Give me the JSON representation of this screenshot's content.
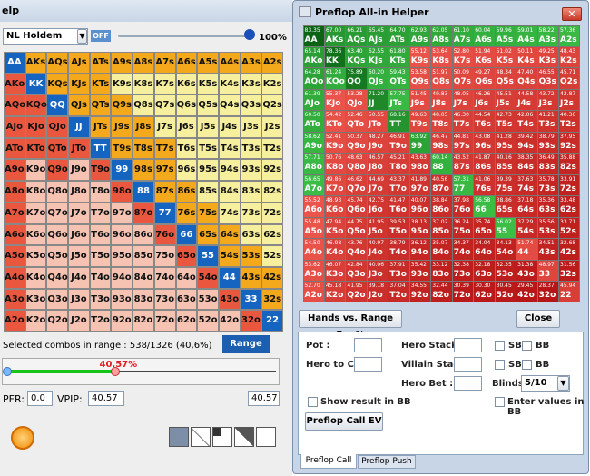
{
  "left_window": {
    "title": "elp",
    "game": "NL Holdem",
    "toggle": "OFF",
    "slider_value": "100%",
    "selected_label": "Selected combos in range : 538/1326 (40,6%)",
    "range_button": "Range",
    "range_percent": "40.57%",
    "pfr_label": "PFR:",
    "pfr": "0.0",
    "vpip_label": "VPIP:",
    "vpip": "40.57",
    "range_field": "40.57"
  },
  "hands": [
    [
      "AA",
      "AKs",
      "AQs",
      "AJs",
      "ATs",
      "A9s",
      "A8s",
      "A7s",
      "A6s",
      "A5s",
      "A4s",
      "A3s",
      "A2s"
    ],
    [
      "AKo",
      "KK",
      "KQs",
      "KJs",
      "KTs",
      "K9s",
      "K8s",
      "K7s",
      "K6s",
      "K5s",
      "K4s",
      "K3s",
      "K2s"
    ],
    [
      "AQo",
      "KQo",
      "QQ",
      "QJs",
      "QTs",
      "Q9s",
      "Q8s",
      "Q7s",
      "Q6s",
      "Q5s",
      "Q4s",
      "Q3s",
      "Q2s"
    ],
    [
      "AJo",
      "KJo",
      "QJo",
      "JJ",
      "JTs",
      "J9s",
      "J8s",
      "J7s",
      "J6s",
      "J5s",
      "J4s",
      "J3s",
      "J2s"
    ],
    [
      "ATo",
      "KTo",
      "QTo",
      "JTo",
      "TT",
      "T9s",
      "T8s",
      "T7s",
      "T6s",
      "T5s",
      "T4s",
      "T3s",
      "T2s"
    ],
    [
      "A9o",
      "K9o",
      "Q9o",
      "J9o",
      "T9o",
      "99",
      "98s",
      "97s",
      "96s",
      "95s",
      "94s",
      "93s",
      "92s"
    ],
    [
      "A8o",
      "K8o",
      "Q8o",
      "J8o",
      "T8o",
      "98o",
      "88",
      "87s",
      "86s",
      "85s",
      "84s",
      "83s",
      "82s"
    ],
    [
      "A7o",
      "K7o",
      "Q7o",
      "J7o",
      "T7o",
      "97o",
      "87o",
      "77",
      "76s",
      "75s",
      "74s",
      "73s",
      "72s"
    ],
    [
      "A6o",
      "K6o",
      "Q6o",
      "J6o",
      "T6o",
      "96o",
      "86o",
      "76o",
      "66",
      "65s",
      "64s",
      "63s",
      "62s"
    ],
    [
      "A5o",
      "K5o",
      "Q5o",
      "J5o",
      "T5o",
      "95o",
      "85o",
      "75o",
      "65o",
      "55",
      "54s",
      "53s",
      "52s"
    ],
    [
      "A4o",
      "K4o",
      "Q4o",
      "J4o",
      "T4o",
      "94o",
      "84o",
      "74o",
      "64o",
      "54o",
      "44",
      "43s",
      "42s"
    ],
    [
      "A3o",
      "K3o",
      "Q3o",
      "J3o",
      "T3o",
      "93o",
      "83o",
      "73o",
      "63o",
      "53o",
      "43o",
      "33",
      "32s"
    ],
    [
      "A2o",
      "K2o",
      "Q2o",
      "J2o",
      "T2o",
      "92o",
      "82o",
      "72o",
      "62o",
      "52o",
      "42o",
      "32o",
      "22"
    ]
  ],
  "helper": {
    "title": "Preflop All-in Helper",
    "equity": [
      [
        "83.35",
        "67.00",
        "66.21",
        "65.45",
        "64.70",
        "62.93",
        "62.05",
        "61.10",
        "60.04",
        "59.96",
        "59.01",
        "58.22",
        "57.36"
      ],
      [
        "65.14",
        "78.36",
        "63.40",
        "62.55",
        "61.80",
        "55.12",
        "53.64",
        "52.80",
        "51.94",
        "51.02",
        "50.11",
        "49.25",
        "48.43"
      ],
      [
        "64.28",
        "61.24",
        "75.89",
        "60.20",
        "59.43",
        "53.58",
        "51.97",
        "50.09",
        "49.27",
        "48.34",
        "47.40",
        "46.55",
        "45.71"
      ],
      [
        "61.39",
        "55.37",
        "53.28",
        "71.20",
        "57.75",
        "51.45",
        "49.83",
        "48.05",
        "46.26",
        "45.51",
        "44.58",
        "43.72",
        "42.87"
      ],
      [
        "60.50",
        "54.42",
        "52.46",
        "50.55",
        "68.16",
        "49.63",
        "48.05",
        "46.30",
        "44.54",
        "42.73",
        "42.06",
        "41.21",
        "40.36"
      ],
      [
        "58.62",
        "52.41",
        "50.37",
        "48.27",
        "46.91",
        "63.92",
        "46.47",
        "44.81",
        "43.08",
        "41.28",
        "39.42",
        "38.79",
        "37.95"
      ],
      [
        "57.71",
        "50.76",
        "48.63",
        "46.57",
        "45.21",
        "43.63",
        "60.14",
        "43.52",
        "41.87",
        "40.16",
        "38.35",
        "36.49",
        "35.88"
      ],
      [
        "56.65",
        "49.86",
        "46.62",
        "44.69",
        "43.37",
        "41.89",
        "40.56",
        "57.31",
        "41.06",
        "39.39",
        "37.63",
        "35.78",
        "33.91"
      ],
      [
        "55.52",
        "48.93",
        "45.74",
        "42.75",
        "41.47",
        "40.07",
        "38.84",
        "37.98",
        "56.58",
        "38.86",
        "37.18",
        "35.36",
        "33.48"
      ],
      [
        "55.48",
        "47.94",
        "44.75",
        "41.95",
        "39.53",
        "38.13",
        "37.02",
        "36.24",
        "35.74",
        "56.02",
        "37.29",
        "35.56",
        "33.71"
      ],
      [
        "54.50",
        "46.98",
        "43.76",
        "40.97",
        "38.79",
        "36.12",
        "35.07",
        "34.37",
        "34.04",
        "34.13",
        "51.74",
        "34.51",
        "32.68"
      ],
      [
        "53.62",
        "46.07",
        "42.84",
        "40.06",
        "37.91",
        "35.42",
        "33.12",
        "32.38",
        "32.18",
        "32.35",
        "31.38",
        "48.97",
        "31.56"
      ],
      [
        "52.70",
        "45.18",
        "41.95",
        "39.18",
        "37.04",
        "34.55",
        "32.44",
        "30.39",
        "30.30",
        "30.45",
        "29.45",
        "28.37",
        "45.94"
      ]
    ],
    "mode_button": "Hands vs. Range Eq. %",
    "close_button": "Close",
    "pot_label": "Pot :",
    "hero_call_label": "Hero to Call :",
    "hero_stack_label": "Hero Stack :",
    "villain_stack_label": "Villain Stack :",
    "hero_bet_label": "Hero Bet :",
    "blinds_label": "Blinds :",
    "blinds": "5/10",
    "sb": "SB",
    "bb": "BB",
    "show_bb": "Show result in BB",
    "enter_bb": "Enter values in BB",
    "call_ev_button": "Preflop Call EV",
    "tabs": [
      "Preflop Call",
      "Preflop Push"
    ]
  }
}
